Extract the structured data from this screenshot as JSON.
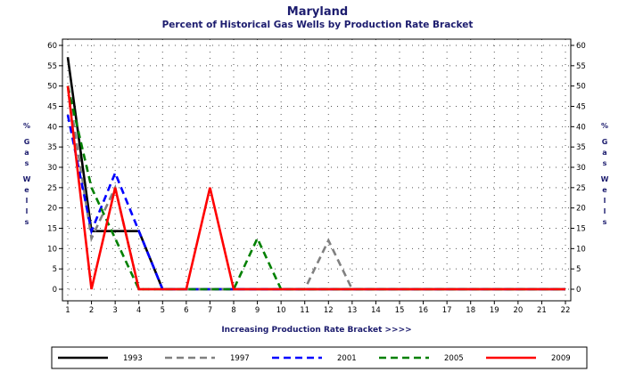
{
  "chart_data": {
    "type": "line",
    "title": "Maryland",
    "subtitle": "Percent of Historical Gas Wells by Production Rate Bracket",
    "xlabel": "Increasing Production Rate Bracket >>>>",
    "ylabel": "% Gas Wells",
    "x": [
      1,
      2,
      3,
      4,
      5,
      6,
      7,
      8,
      9,
      10,
      11,
      12,
      13,
      14,
      15,
      16,
      17,
      18,
      19,
      20,
      21,
      22
    ],
    "xlim": [
      1,
      22
    ],
    "ylim": [
      0,
      60
    ],
    "yticks": [
      0,
      5,
      10,
      15,
      20,
      25,
      30,
      35,
      40,
      45,
      50,
      55,
      60
    ],
    "grid": true,
    "legend_position": "bottom",
    "series": [
      {
        "name": "1993",
        "color": "#000000",
        "dash": "solid",
        "values": [
          57.1,
          14.3,
          14.3,
          14.3,
          0,
          0,
          0,
          0,
          0,
          0,
          0,
          0,
          0,
          0,
          0,
          0,
          0,
          0,
          0,
          0,
          0,
          0
        ]
      },
      {
        "name": "1997",
        "color": "#808080",
        "dash": "dashed",
        "values": [
          50,
          12.5,
          25,
          0,
          0,
          0,
          0,
          0,
          0,
          0,
          0,
          12,
          0,
          0,
          0,
          0,
          0,
          0,
          0,
          0,
          0,
          0
        ]
      },
      {
        "name": "2001",
        "color": "#0000ff",
        "dash": "dashed",
        "values": [
          42.9,
          14.3,
          28.6,
          14.3,
          0,
          0,
          0,
          0,
          0,
          0,
          0,
          0,
          0,
          0,
          0,
          0,
          0,
          0,
          0,
          0,
          0,
          0
        ]
      },
      {
        "name": "2005",
        "color": "#008000",
        "dash": "dashed",
        "values": [
          50,
          25,
          12.5,
          0,
          0,
          0,
          0,
          0,
          12.5,
          0,
          0,
          0,
          0,
          0,
          0,
          0,
          0,
          0,
          0,
          0,
          0,
          0
        ]
      },
      {
        "name": "2009",
        "color": "#ff0000",
        "dash": "solid",
        "values": [
          50,
          0,
          25,
          0,
          0,
          0,
          25,
          0,
          0,
          0,
          0,
          0,
          0,
          0,
          0,
          0,
          0,
          0,
          0,
          0,
          0,
          0
        ]
      }
    ]
  }
}
